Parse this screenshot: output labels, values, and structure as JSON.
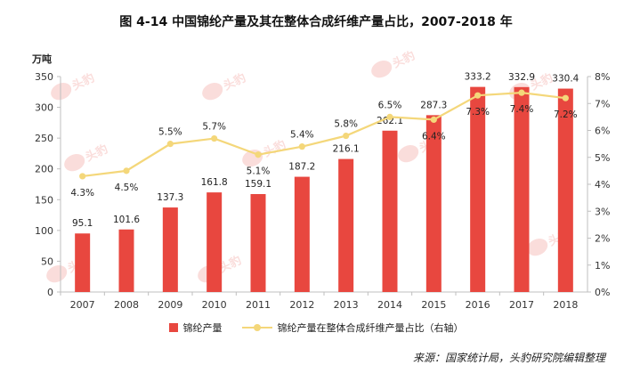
{
  "title": "图 4-14 中国锦纶产量及其在整体合成纤维产量占比，2007-2018 年",
  "source": "来源：国家统计局，头豹研究院编辑整理",
  "watermark_text": "头豹",
  "colors": {
    "bar": "#e8473f",
    "line": "#f4d77a",
    "axis": "#bfbfbf"
  },
  "chart_data": {
    "type": "bar",
    "title": "图 4-14 中国锦纶产量及其在整体合成纤维产量占比，2007-2018 年",
    "y_unit": "万吨",
    "categories": [
      "2007",
      "2008",
      "2009",
      "2010",
      "2011",
      "2012",
      "2013",
      "2014",
      "2015",
      "2016",
      "2017",
      "2018"
    ],
    "series": [
      {
        "name": "锦纶产量",
        "type": "bar",
        "axis": "left",
        "values": [
          95.1,
          101.6,
          137.3,
          161.8,
          159.1,
          187.2,
          216.1,
          262.1,
          287.3,
          333.2,
          332.9,
          330.4
        ],
        "labels": [
          "95.1",
          "101.6",
          "137.3",
          "161.8",
          "159.1",
          "187.2",
          "216.1",
          "262.1",
          "287.3",
          "333.2",
          "332.9",
          "330.4"
        ]
      },
      {
        "name": "锦纶产量在整体合成纤维产量占比（右轴）",
        "type": "line",
        "axis": "right",
        "values": [
          4.3,
          4.5,
          5.5,
          5.7,
          5.1,
          5.4,
          5.8,
          6.5,
          6.4,
          7.3,
          7.4,
          7.2
        ],
        "labels": [
          "4.3%",
          "4.5%",
          "5.5%",
          "5.7%",
          "5.1%",
          "5.4%",
          "5.8%",
          "6.5%",
          "6.4%",
          "7.3%",
          "7.4%",
          "7.2%"
        ]
      }
    ],
    "y_left": {
      "min": 0,
      "max": 350,
      "ticks": [
        "0",
        "50",
        "100",
        "150",
        "200",
        "250",
        "300",
        "350"
      ]
    },
    "y_right": {
      "min": 0,
      "max": 8,
      "ticks": [
        "0%",
        "1%",
        "2%",
        "3%",
        "4%",
        "5%",
        "6%",
        "7%",
        "8%"
      ]
    },
    "legend": "bottom",
    "grid": false
  }
}
